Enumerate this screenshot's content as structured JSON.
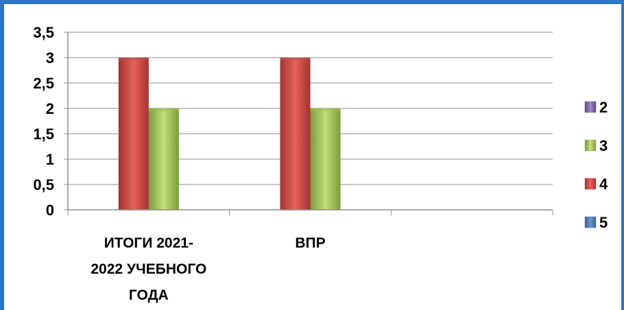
{
  "chart_data": {
    "type": "bar",
    "title": "",
    "xlabel": "",
    "ylabel": "",
    "ylim": [
      0,
      3.5
    ],
    "y_ticks": [
      "0",
      "0,5",
      "1",
      "1,5",
      "2",
      "2,5",
      "3",
      "3,5"
    ],
    "y_tick_values": [
      0,
      0.5,
      1,
      1.5,
      2,
      2.5,
      3,
      3.5
    ],
    "categories": [
      [
        "ИТОГИ 2021-",
        "2022 УЧЕБНОГО",
        "ГОДА"
      ],
      [
        "ВПР"
      ],
      [
        ""
      ]
    ],
    "series": [
      {
        "name": "5",
        "values": [
          0,
          0,
          0
        ],
        "color": "#4f81bd"
      },
      {
        "name": "4",
        "values": [
          3,
          3,
          0
        ],
        "color": "#c0504d"
      },
      {
        "name": "3",
        "values": [
          2,
          2,
          0
        ],
        "color": "#9bbb59"
      },
      {
        "name": "2",
        "values": [
          0,
          0,
          0
        ],
        "color": "#8064a2"
      }
    ],
    "grid": true,
    "legend_position": "right"
  }
}
